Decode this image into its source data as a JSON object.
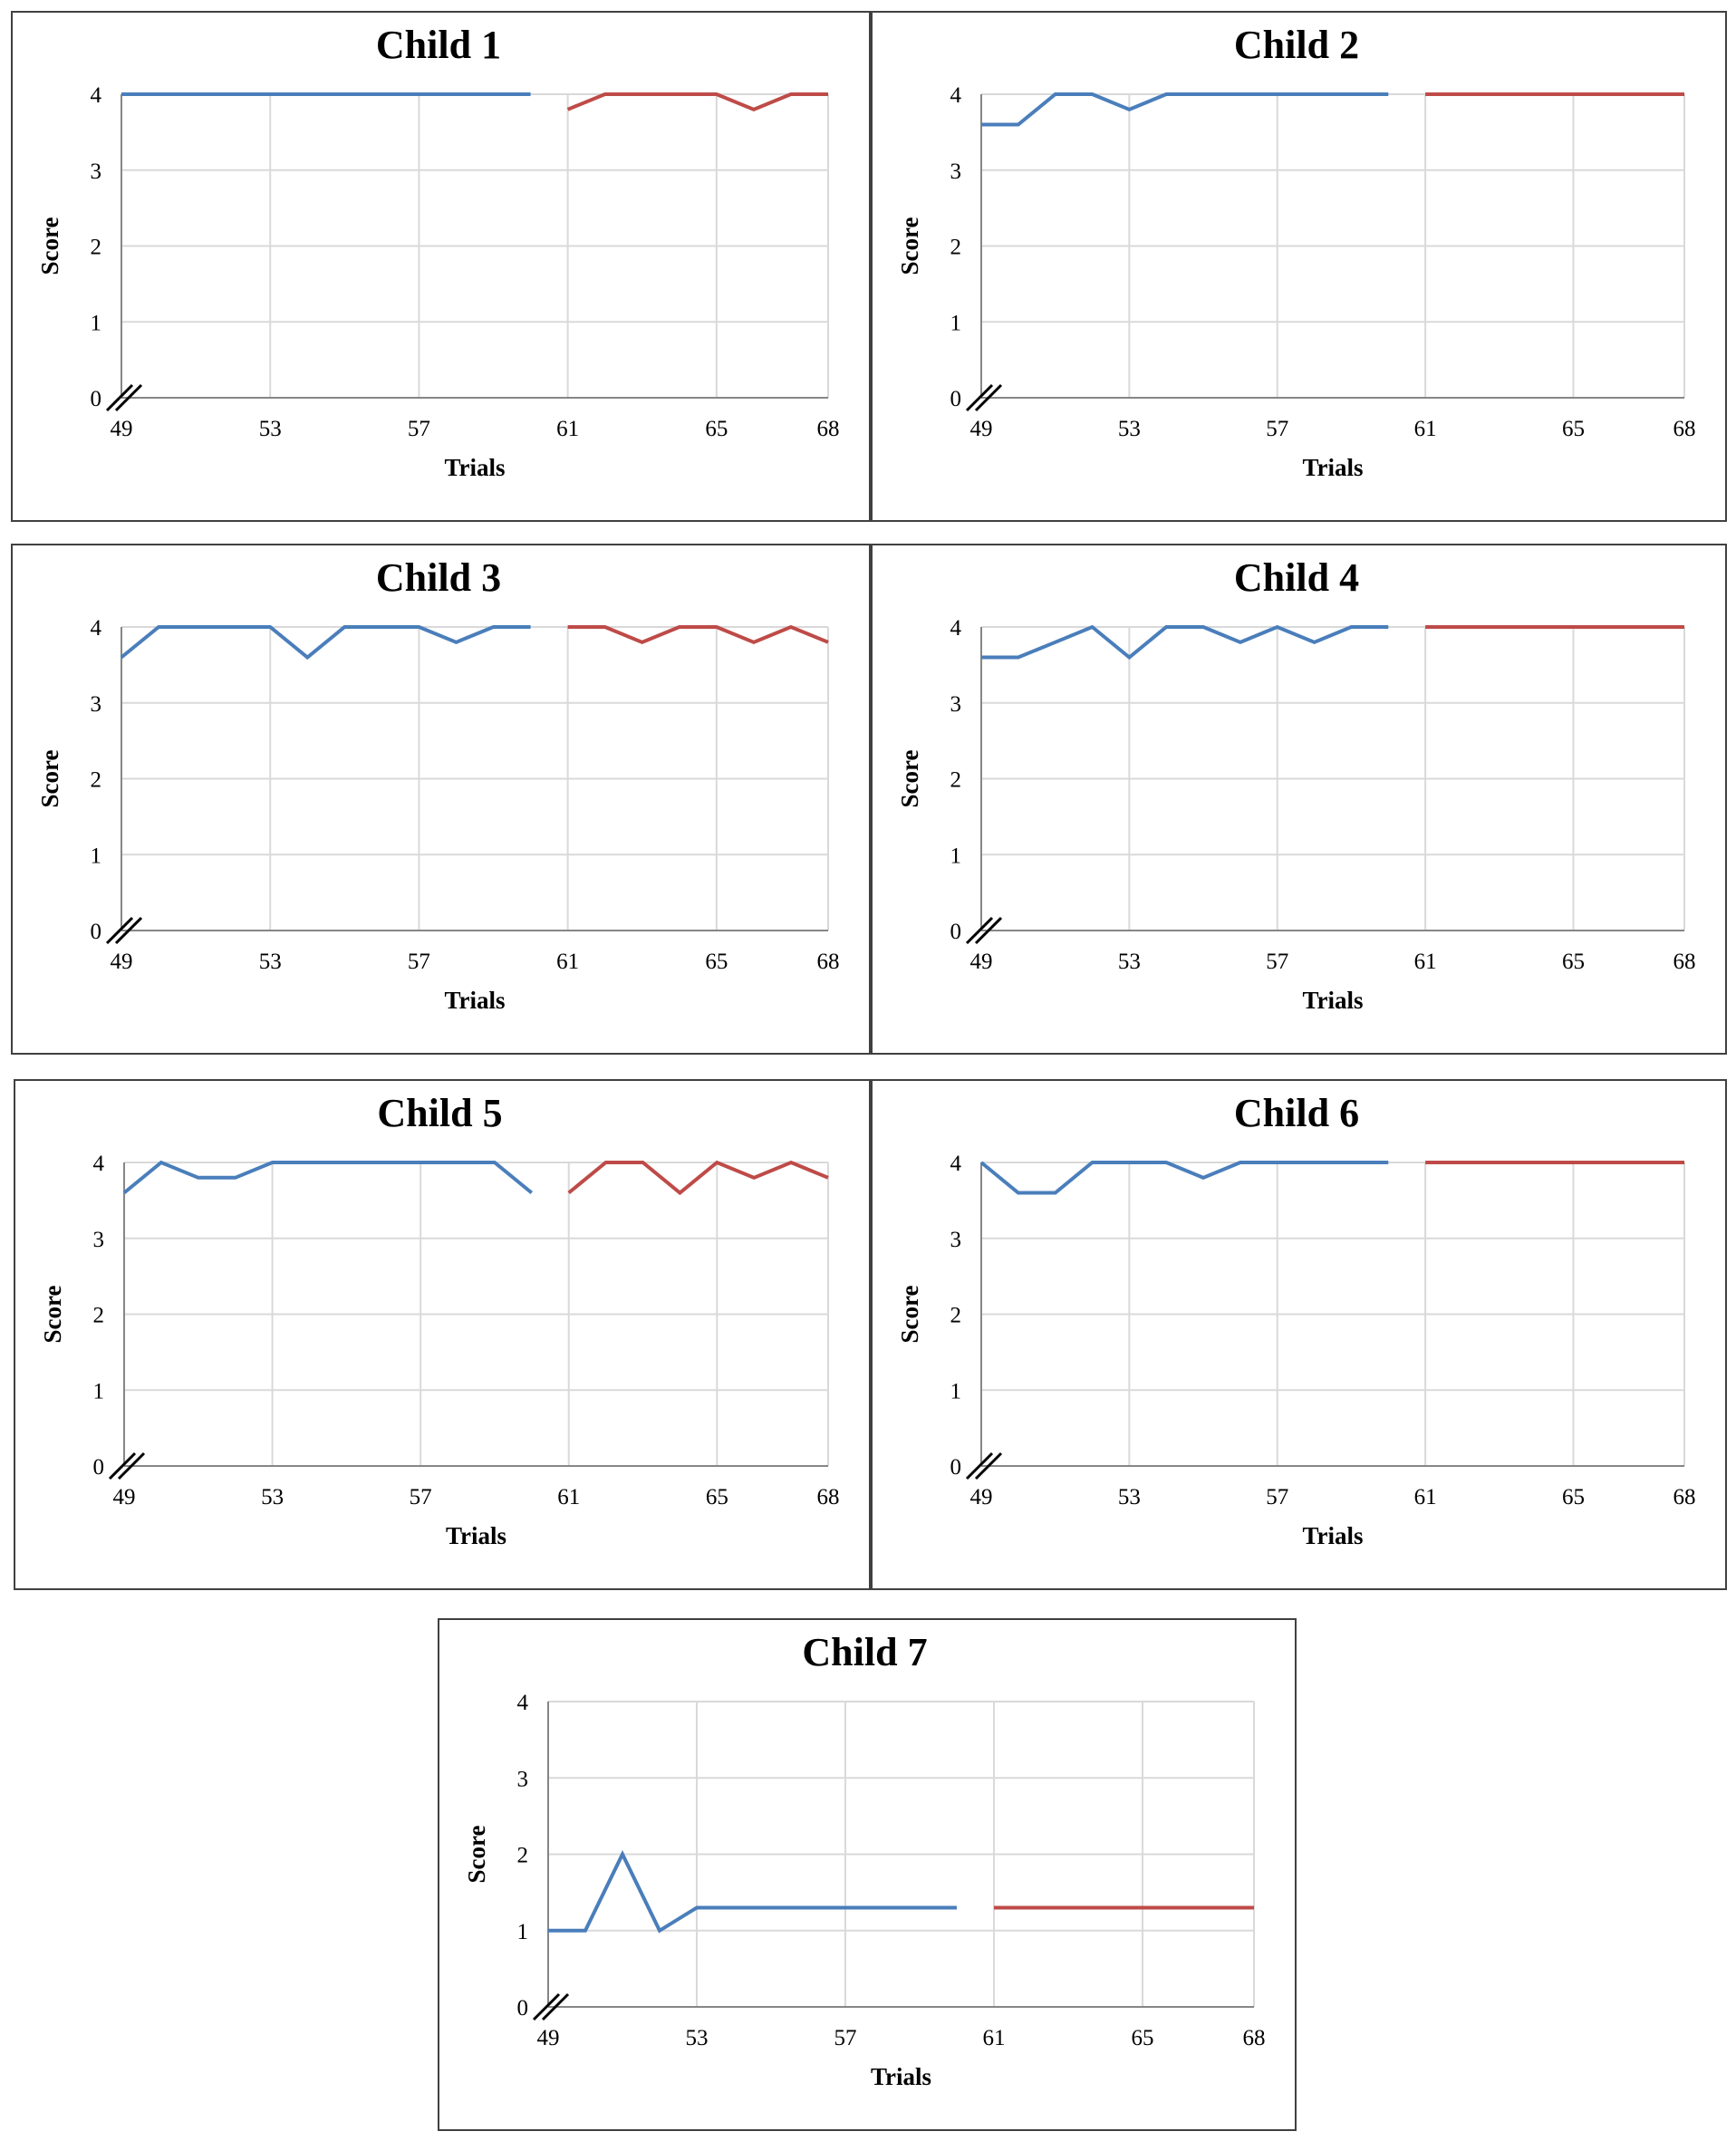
{
  "figure": {
    "colors": {
      "baseline": "#4a7ebb",
      "followup": "#be4b48",
      "grid": "#d9d9d9",
      "axis": "#868686",
      "frame": "#404040"
    }
  },
  "chart_data": [
    {
      "type": "line",
      "title": "Child 1",
      "xlabel": "Trials",
      "ylabel": "Score",
      "xticks": [
        "49",
        "53",
        "57",
        "61",
        "65",
        "68"
      ],
      "yticks": [
        "0",
        "1",
        "2",
        "3",
        "4"
      ],
      "xlim": [
        49,
        68
      ],
      "ylim": [
        0,
        4
      ],
      "grid": true,
      "axis_break": true,
      "series": [
        {
          "x": [
            49,
            50,
            51,
            52,
            53,
            54,
            55,
            56,
            57,
            58,
            59,
            60
          ],
          "y": [
            4,
            4,
            4,
            4,
            4,
            4,
            4,
            4,
            4,
            4,
            4,
            4
          ]
        },
        {
          "x": [
            61,
            62,
            63,
            64,
            65,
            66,
            67,
            68
          ],
          "y": [
            3.8,
            4,
            4,
            4,
            4,
            3.8,
            4,
            4
          ]
        }
      ]
    },
    {
      "type": "line",
      "title": "Child 2",
      "xlabel": "Trials",
      "ylabel": "Score",
      "xticks": [
        "49",
        "53",
        "57",
        "61",
        "65",
        "68"
      ],
      "yticks": [
        "0",
        "1",
        "2",
        "3",
        "4"
      ],
      "xlim": [
        49,
        68
      ],
      "ylim": [
        0,
        4
      ],
      "grid": true,
      "axis_break": true,
      "series": [
        {
          "x": [
            49,
            50,
            51,
            52,
            53,
            54,
            55,
            56,
            57,
            58,
            59,
            60
          ],
          "y": [
            3.6,
            3.6,
            4,
            4,
            3.8,
            4,
            4,
            4,
            4,
            4,
            4,
            4
          ]
        },
        {
          "x": [
            61,
            62,
            63,
            64,
            65,
            66,
            67,
            68
          ],
          "y": [
            4,
            4,
            4,
            4,
            4,
            4,
            4,
            4
          ]
        }
      ]
    },
    {
      "type": "line",
      "title": "Child 3",
      "xlabel": "Trials",
      "ylabel": "Score",
      "xticks": [
        "49",
        "53",
        "57",
        "61",
        "65",
        "68"
      ],
      "yticks": [
        "0",
        "1",
        "2",
        "3",
        "4"
      ],
      "xlim": [
        49,
        68
      ],
      "ylim": [
        0,
        4
      ],
      "grid": true,
      "axis_break": true,
      "series": [
        {
          "x": [
            49,
            50,
            51,
            52,
            53,
            54,
            55,
            56,
            57,
            58,
            59,
            60
          ],
          "y": [
            3.6,
            4,
            4,
            4,
            4,
            3.6,
            4,
            4,
            4,
            3.8,
            4,
            4
          ]
        },
        {
          "x": [
            61,
            62,
            63,
            64,
            65,
            66,
            67,
            68
          ],
          "y": [
            4,
            4,
            3.8,
            4,
            4,
            3.8,
            4,
            3.8
          ]
        }
      ]
    },
    {
      "type": "line",
      "title": "Child 4",
      "xlabel": "Trials",
      "ylabel": "Score",
      "xticks": [
        "49",
        "53",
        "57",
        "61",
        "65",
        "68"
      ],
      "yticks": [
        "0",
        "1",
        "2",
        "3",
        "4"
      ],
      "xlim": [
        49,
        68
      ],
      "ylim": [
        0,
        4
      ],
      "grid": true,
      "axis_break": true,
      "series": [
        {
          "x": [
            49,
            50,
            51,
            52,
            53,
            54,
            55,
            56,
            57,
            58,
            59,
            60
          ],
          "y": [
            3.6,
            3.6,
            3.8,
            4,
            3.6,
            4,
            4,
            3.8,
            4,
            3.8,
            4,
            4
          ]
        },
        {
          "x": [
            61,
            62,
            63,
            64,
            65,
            66,
            67,
            68
          ],
          "y": [
            4,
            4,
            4,
            4,
            4,
            4,
            4,
            4
          ]
        }
      ]
    },
    {
      "type": "line",
      "title": "Child 5",
      "xlabel": "Trials",
      "ylabel": "Score",
      "xticks": [
        "49",
        "53",
        "57",
        "61",
        "65",
        "68"
      ],
      "yticks": [
        "0",
        "1",
        "2",
        "3",
        "4"
      ],
      "xlim": [
        49,
        68
      ],
      "ylim": [
        0,
        4
      ],
      "grid": true,
      "axis_break": true,
      "series": [
        {
          "x": [
            49,
            50,
            51,
            52,
            53,
            54,
            55,
            56,
            57,
            58,
            59,
            60
          ],
          "y": [
            3.6,
            4,
            3.8,
            3.8,
            4,
            4,
            4,
            4,
            4,
            4,
            4,
            3.6
          ]
        },
        {
          "x": [
            61,
            62,
            63,
            64,
            65,
            66,
            67,
            68
          ],
          "y": [
            3.6,
            4,
            4,
            3.6,
            4,
            3.8,
            4,
            3.8
          ]
        }
      ]
    },
    {
      "type": "line",
      "title": "Child 6",
      "xlabel": "Trials",
      "ylabel": "Score",
      "xticks": [
        "49",
        "53",
        "57",
        "61",
        "65",
        "68"
      ],
      "yticks": [
        "0",
        "1",
        "2",
        "3",
        "4"
      ],
      "xlim": [
        49,
        68
      ],
      "ylim": [
        0,
        4
      ],
      "grid": true,
      "axis_break": true,
      "series": [
        {
          "x": [
            49,
            50,
            51,
            52,
            53,
            54,
            55,
            56,
            57,
            58,
            59,
            60
          ],
          "y": [
            4,
            3.6,
            3.6,
            4,
            4,
            4,
            3.8,
            4,
            4,
            4,
            4,
            4
          ]
        },
        {
          "x": [
            61,
            62,
            63,
            64,
            65,
            66,
            67,
            68
          ],
          "y": [
            4,
            4,
            4,
            4,
            4,
            4,
            4,
            4
          ]
        }
      ]
    },
    {
      "type": "line",
      "title": "Child 7",
      "xlabel": "Trials",
      "ylabel": "Score",
      "xticks": [
        "49",
        "53",
        "57",
        "61",
        "65",
        "68"
      ],
      "yticks": [
        "0",
        "1",
        "2",
        "3",
        "4"
      ],
      "xlim": [
        49,
        68
      ],
      "ylim": [
        0,
        4
      ],
      "grid": true,
      "axis_break": true,
      "series": [
        {
          "x": [
            49,
            50,
            51,
            52,
            53,
            54,
            55,
            56,
            57,
            58,
            59,
            60
          ],
          "y": [
            1,
            1,
            2,
            1,
            1.3,
            1.3,
            1.3,
            1.3,
            1.3,
            1.3,
            1.3,
            1.3
          ]
        },
        {
          "x": [
            61,
            62,
            63,
            64,
            65,
            66,
            67,
            68
          ],
          "y": [
            1.3,
            1.3,
            1.3,
            1.3,
            1.3,
            1.3,
            1.3,
            1.3
          ]
        }
      ]
    }
  ]
}
